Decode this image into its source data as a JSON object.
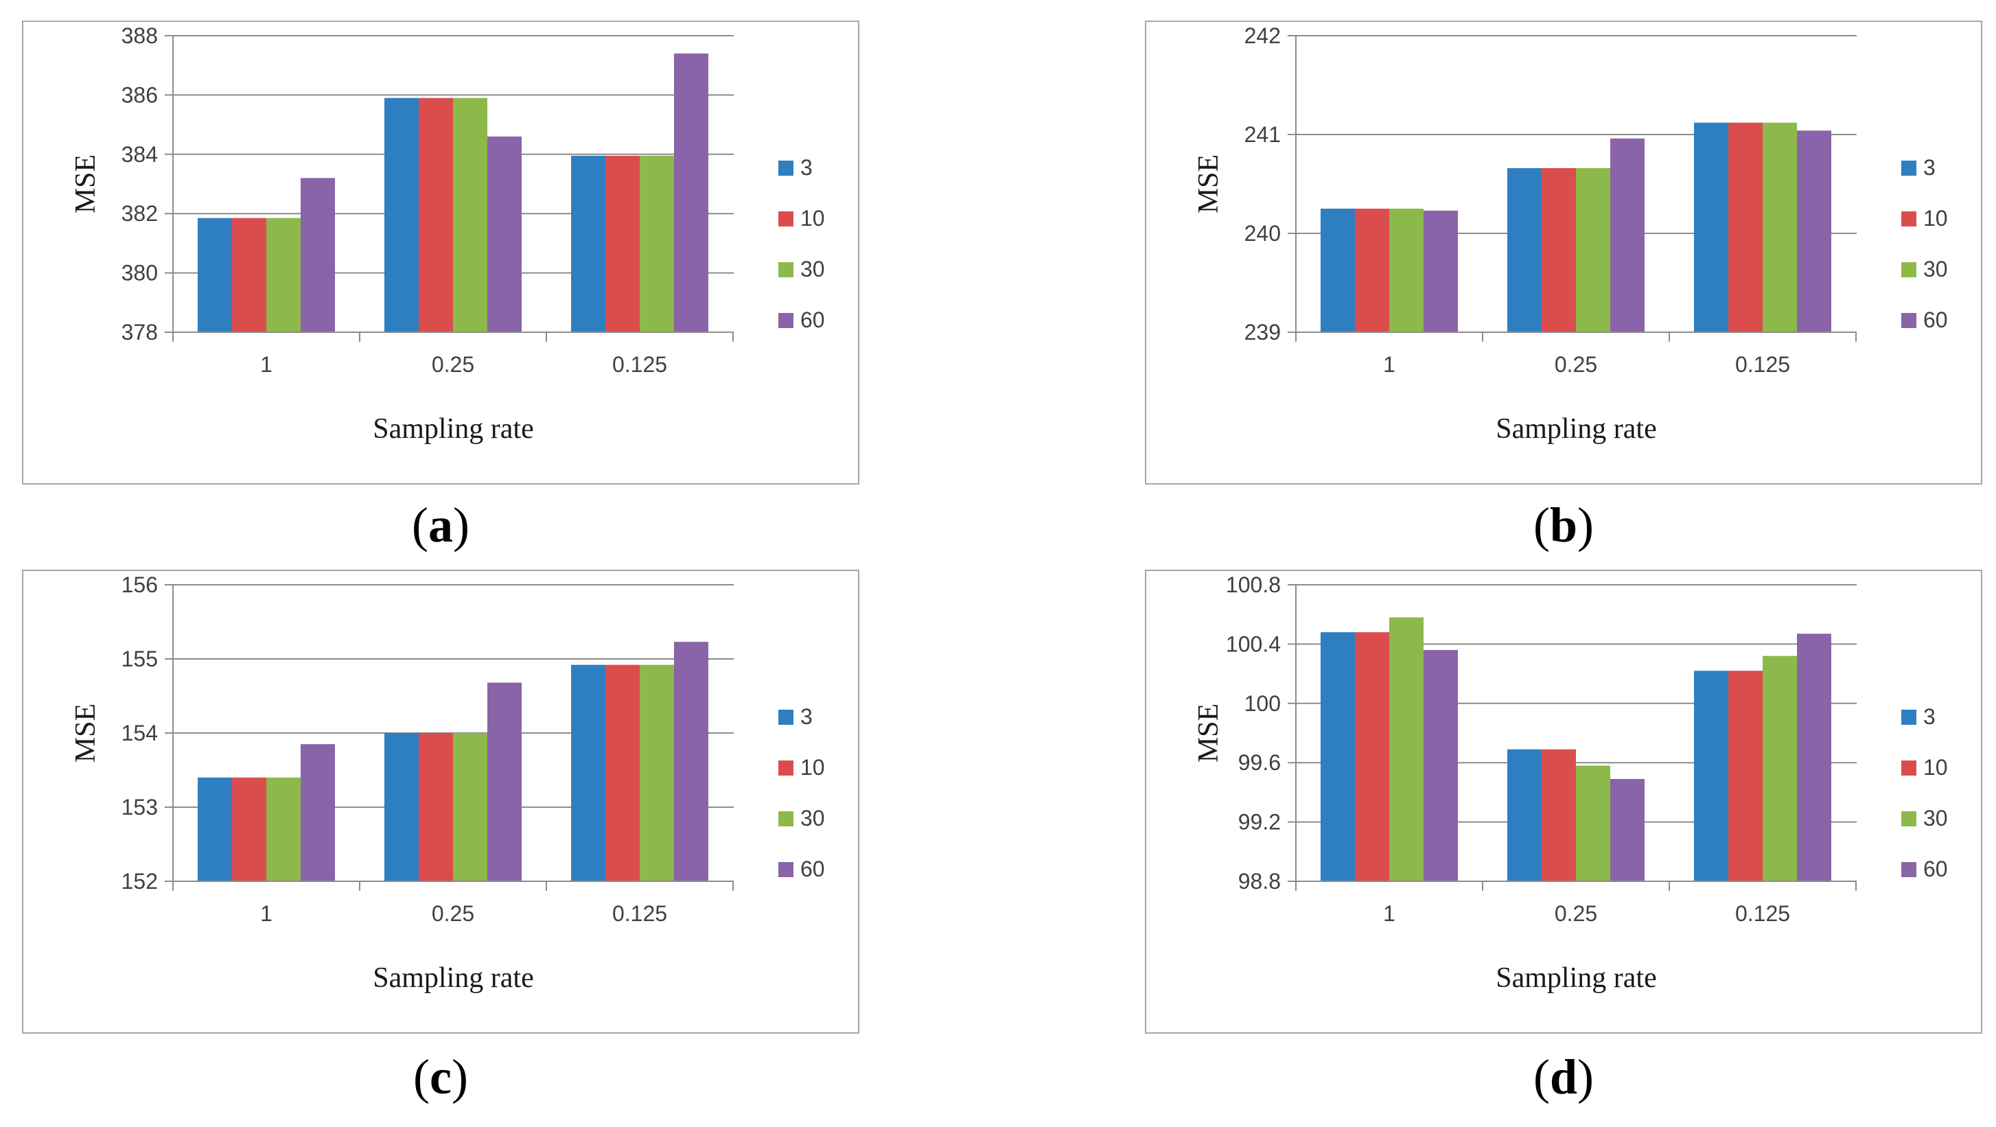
{
  "colors": {
    "3": "#2e7fc1",
    "10": "#db4d4d",
    "30": "#8db94b",
    "60": "#8a64a8",
    "grid": "#8c8c8c",
    "axis": "#8c8c8c"
  },
  "captions": [
    {
      "open": "(",
      "letter": "a",
      "close": ")"
    },
    {
      "open": "(",
      "letter": "b",
      "close": ")"
    },
    {
      "open": "(",
      "letter": "c",
      "close": ")"
    },
    {
      "open": "(",
      "letter": "d",
      "close": ")"
    }
  ],
  "chart_data": [
    {
      "type": "bar",
      "title": "",
      "xlabel": "Sampling rate",
      "ylabel": "MSE",
      "categories": [
        "1",
        "0.25",
        "0.125"
      ],
      "ylim": [
        378,
        388
      ],
      "yticks": [
        "378",
        "380",
        "382",
        "384",
        "386",
        "388"
      ],
      "legend_position": "right",
      "series": [
        {
          "name": "3",
          "values": [
            381.85,
            385.9,
            383.95
          ]
        },
        {
          "name": "10",
          "values": [
            381.85,
            385.9,
            383.95
          ]
        },
        {
          "name": "30",
          "values": [
            381.85,
            385.9,
            383.95
          ]
        },
        {
          "name": "60",
          "values": [
            383.2,
            384.6,
            387.4
          ]
        }
      ]
    },
    {
      "type": "bar",
      "title": "",
      "xlabel": "Sampling rate",
      "ylabel": "MSE",
      "categories": [
        "1",
        "0.25",
        "0.125"
      ],
      "ylim": [
        239,
        242
      ],
      "yticks": [
        "239",
        "240",
        "241",
        "242"
      ],
      "legend_position": "right",
      "series": [
        {
          "name": "3",
          "values": [
            240.25,
            240.66,
            241.12
          ]
        },
        {
          "name": "10",
          "values": [
            240.25,
            240.66,
            241.12
          ]
        },
        {
          "name": "30",
          "values": [
            240.25,
            240.66,
            241.12
          ]
        },
        {
          "name": "60",
          "values": [
            240.23,
            240.96,
            241.04
          ]
        }
      ]
    },
    {
      "type": "bar",
      "title": "",
      "xlabel": "Sampling rate",
      "ylabel": "MSE",
      "categories": [
        "1",
        "0.25",
        "0.125"
      ],
      "ylim": [
        152,
        156
      ],
      "yticks": [
        "152",
        "153",
        "154",
        "155",
        "156"
      ],
      "legend_position": "right",
      "series": [
        {
          "name": "3",
          "values": [
            153.4,
            154.0,
            154.92
          ]
        },
        {
          "name": "10",
          "values": [
            153.4,
            154.0,
            154.92
          ]
        },
        {
          "name": "30",
          "values": [
            153.4,
            154.0,
            154.92
          ]
        },
        {
          "name": "60",
          "values": [
            153.85,
            154.68,
            155.23
          ]
        }
      ]
    },
    {
      "type": "bar",
      "title": "",
      "xlabel": "Sampling rate",
      "ylabel": "MSE",
      "categories": [
        "1",
        "0.25",
        "0.125"
      ],
      "ylim": [
        98.8,
        100.8
      ],
      "yticks": [
        "98.8",
        "99.2",
        "99.6",
        "100",
        "100.4",
        "100.8"
      ],
      "legend_position": "right",
      "series": [
        {
          "name": "3",
          "values": [
            100.48,
            99.69,
            100.22
          ]
        },
        {
          "name": "10",
          "values": [
            100.48,
            99.69,
            100.22
          ]
        },
        {
          "name": "30",
          "values": [
            100.58,
            99.58,
            100.32
          ]
        },
        {
          "name": "60",
          "values": [
            100.36,
            99.49,
            100.47
          ]
        }
      ]
    }
  ]
}
